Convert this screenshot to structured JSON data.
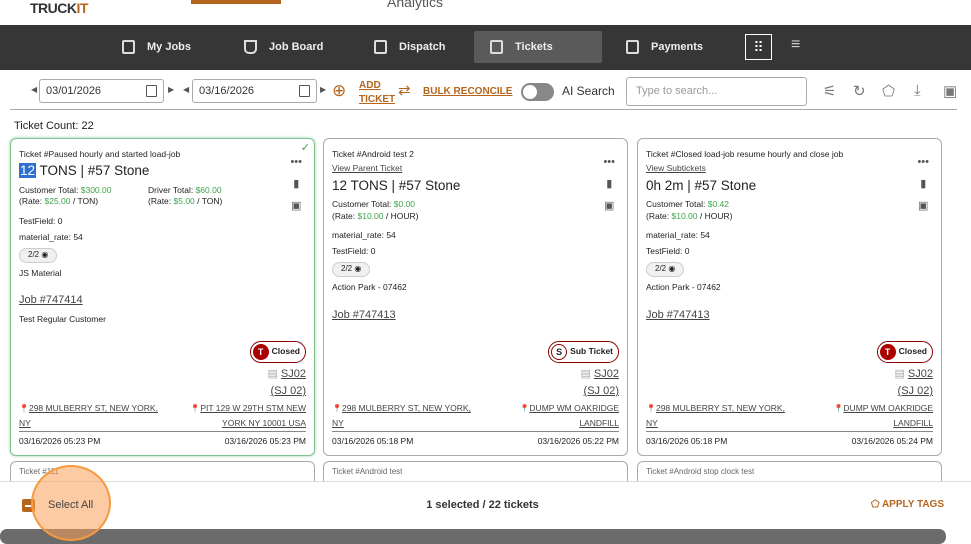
{
  "header": {
    "logo": "TRUCKIT",
    "analytics_tab": "Analytics"
  },
  "nav": {
    "items": [
      {
        "label": "My Jobs",
        "icon": "calendar-icon"
      },
      {
        "label": "Job Board",
        "icon": "basket-icon"
      },
      {
        "label": "Dispatch",
        "icon": "clipboard-icon"
      },
      {
        "label": "Tickets",
        "icon": "clipboard-check-icon",
        "active": true
      },
      {
        "label": "Payments",
        "icon": "clipboard-check-icon"
      }
    ],
    "grid_icon": "apps-grid-icon",
    "menu_icon": "hamburger-icon"
  },
  "toolbar": {
    "start_date": "03/01/2026",
    "end_date": "03/16/2026",
    "add_ticket": "ADD TICKET",
    "bulk_reconcile": "BULK RECONCILE",
    "ai_search_label": "AI Search",
    "ai_search_on": false,
    "search_placeholder": "Type to search...",
    "icons": [
      "filter-sliders-icon",
      "refresh-icon",
      "tag-icon",
      "download-icon",
      "gallery-icon"
    ]
  },
  "ticket_count": "Ticket Count: 22",
  "cards": [
    {
      "title": "Ticket #Paused hourly and started load-job",
      "qty": "12",
      "headline": " TONS | #57 Stone",
      "selected": true,
      "customer_total": "$300.00",
      "customer_rate": "$25.00",
      "customer_unit": "TON",
      "driver_total": "$60.00",
      "driver_rate": "$5.00",
      "driver_unit": "TON",
      "fields": [
        "TestField: 0",
        "material_rate: 54"
      ],
      "pill": "2/2",
      "material": "JS Material",
      "job": "Job #747414",
      "customer": "Test Regular Customer",
      "badge_letter": "T",
      "badge": "Closed",
      "truck": "SJ02",
      "truck_sub": "(SJ 02)",
      "pickup": "298 MULBERRY ST, NEW YORK, NY",
      "dropoff": "PIT 129 W 29TH STM NEW YORK NY 10001 USA",
      "start": "03/16/2026 05:23 PM",
      "end": "03/16/2026 05:23 PM"
    },
    {
      "title": "Ticket #Android test 2",
      "link": "View Parent Ticket",
      "headline": "12 TONS | #57 Stone",
      "customer_total": "$0.00",
      "customer_rate": "$10.00",
      "customer_unit": "HOUR",
      "fields": [
        "material_rate: 54",
        "TestField: 0"
      ],
      "pill": "2/2",
      "material": "Action Park - 07462",
      "job": "Job #747413",
      "badge_letter": "S",
      "badge": "Sub Ticket",
      "truck": "SJ02",
      "truck_sub": "(SJ 02)",
      "pickup": "298 MULBERRY ST, NEW YORK, NY",
      "dropoff": "DUMP WM OAKRIDGE LANDFILL",
      "start": "03/16/2026 05:18 PM",
      "end": "03/16/2026 05:22 PM"
    },
    {
      "title": "Ticket #Closed load-job resume hourly and close job",
      "link": "View Subtickets",
      "headline": "0h 2m | #57 Stone",
      "customer_total": "$0.42",
      "customer_rate": "$10.00",
      "customer_unit": "HOUR",
      "fields": [
        "material_rate: 54",
        "TestField: 0"
      ],
      "pill": "2/2",
      "material": "Action Park - 07462",
      "job": "Job #747413",
      "badge_letter": "T",
      "badge": "Closed",
      "truck": "SJ02",
      "truck_sub": "(SJ 02)",
      "pickup": "298 MULBERRY ST, NEW YORK, NY",
      "dropoff": "DUMP WM OAKRIDGE LANDFILL",
      "start": "03/16/2026 05:18 PM",
      "end": "03/16/2026 05:24 PM"
    }
  ],
  "next_cards": [
    "Ticket #111",
    "Ticket #Android test",
    "Ticket #Android stop clock test"
  ],
  "footer": {
    "select_all": "Select All",
    "selection": "1 selected / 22 tickets",
    "apply_tags": "APPLY TAGS"
  },
  "colors": {
    "accent": "#b5651d",
    "nav_bg": "#363636",
    "money": "#3fa34d",
    "closed": "#a00000"
  }
}
